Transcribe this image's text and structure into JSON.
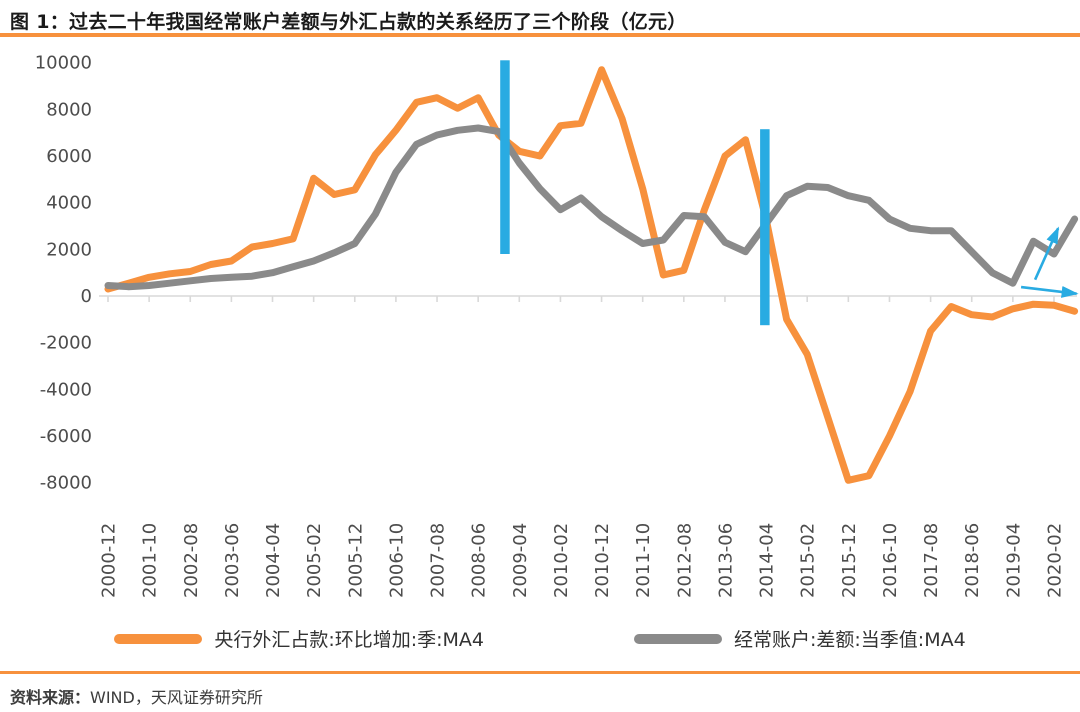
{
  "source_note": {
    "label": "资料来源：",
    "text": "WIND，天风证券研究所"
  },
  "colors": {
    "accent_orange": "#F7913D",
    "series_gray": "#8A8A8A",
    "highlight_cyan": "#29ABE2",
    "axis_line": "#D9D9D9",
    "tick_text": "#4D4D4D",
    "title_text": "#1A1A1A"
  },
  "chart_data": {
    "type": "line",
    "title": "图 1：过去二十年我国经常账户差额与外汇占款的关系经历了三个阶段（亿元）",
    "xlabel": "",
    "ylabel": "",
    "ylim": [
      -8000,
      10000
    ],
    "y_ticks": [
      10000,
      8000,
      6000,
      4000,
      2000,
      0,
      -2000,
      -4000,
      -6000,
      -8000
    ],
    "grid": "zero-axis-only",
    "legend_position": "bottom",
    "x_labels": [
      "2000-12",
      "2001-10",
      "2002-08",
      "2003-06",
      "2004-04",
      "2005-02",
      "2005-12",
      "2006-10",
      "2007-08",
      "2008-06",
      "2009-04",
      "2010-02",
      "2010-12",
      "2011-10",
      "2012-08",
      "2013-06",
      "2014-04",
      "2015-02",
      "2015-12",
      "2016-10",
      "2017-08",
      "2018-06",
      "2019-04",
      "2020-02"
    ],
    "points_per_label_interval": 2,
    "series": [
      {
        "name": "央行外汇占款:环比增加:季:MA4",
        "color": "#F7913D",
        "values": [
          300,
          550,
          800,
          950,
          1050,
          1350,
          1500,
          2100,
          2250,
          2450,
          5050,
          4350,
          4550,
          6050,
          7100,
          8300,
          8500,
          8050,
          8500,
          6900,
          6200,
          6000,
          7300,
          7400,
          9700,
          7600,
          4600,
          900,
          1100,
          3700,
          6000,
          6700,
          3300,
          -1000,
          -2500,
          -5200,
          -7900,
          -7700,
          -6000,
          -4100,
          -1500,
          -450,
          -800,
          -900,
          -550,
          -350,
          -400,
          -650
        ]
      },
      {
        "name": "经常账户:差额:当季值:MA4",
        "color": "#8A8A8A",
        "values": [
          450,
          400,
          450,
          550,
          650,
          750,
          800,
          850,
          1000,
          1250,
          1500,
          1850,
          2250,
          3500,
          5300,
          6500,
          6900,
          7100,
          7200,
          7050,
          5700,
          4600,
          3700,
          4200,
          3400,
          2800,
          2250,
          2400,
          3450,
          3400,
          2300,
          1900,
          3100,
          4300,
          4700,
          4650,
          4300,
          4100,
          3300,
          2900,
          2800,
          2800,
          1900,
          1000,
          550,
          2350,
          1800,
          3300
        ]
      }
    ],
    "annotations": {
      "vertical_bars": [
        {
          "near_label": "2008-12",
          "x_label_index": 9.65,
          "value_from": 1800,
          "value_to": 10100,
          "color": "#29ABE2"
        },
        {
          "near_label": "2014-04",
          "x_label_index": 15.97,
          "value_from": -1250,
          "value_to": 7150,
          "color": "#29ABE2"
        }
      ],
      "arrows": [
        {
          "name": "up-right",
          "x_from": 22.54,
          "value_from": 700,
          "x_to": 23.1,
          "value_to": 2900,
          "color": "#29ABE2"
        },
        {
          "name": "right",
          "x_from": 22.2,
          "value_from": 380,
          "x_to": 23.55,
          "value_to": 100,
          "color": "#29ABE2"
        }
      ]
    }
  }
}
